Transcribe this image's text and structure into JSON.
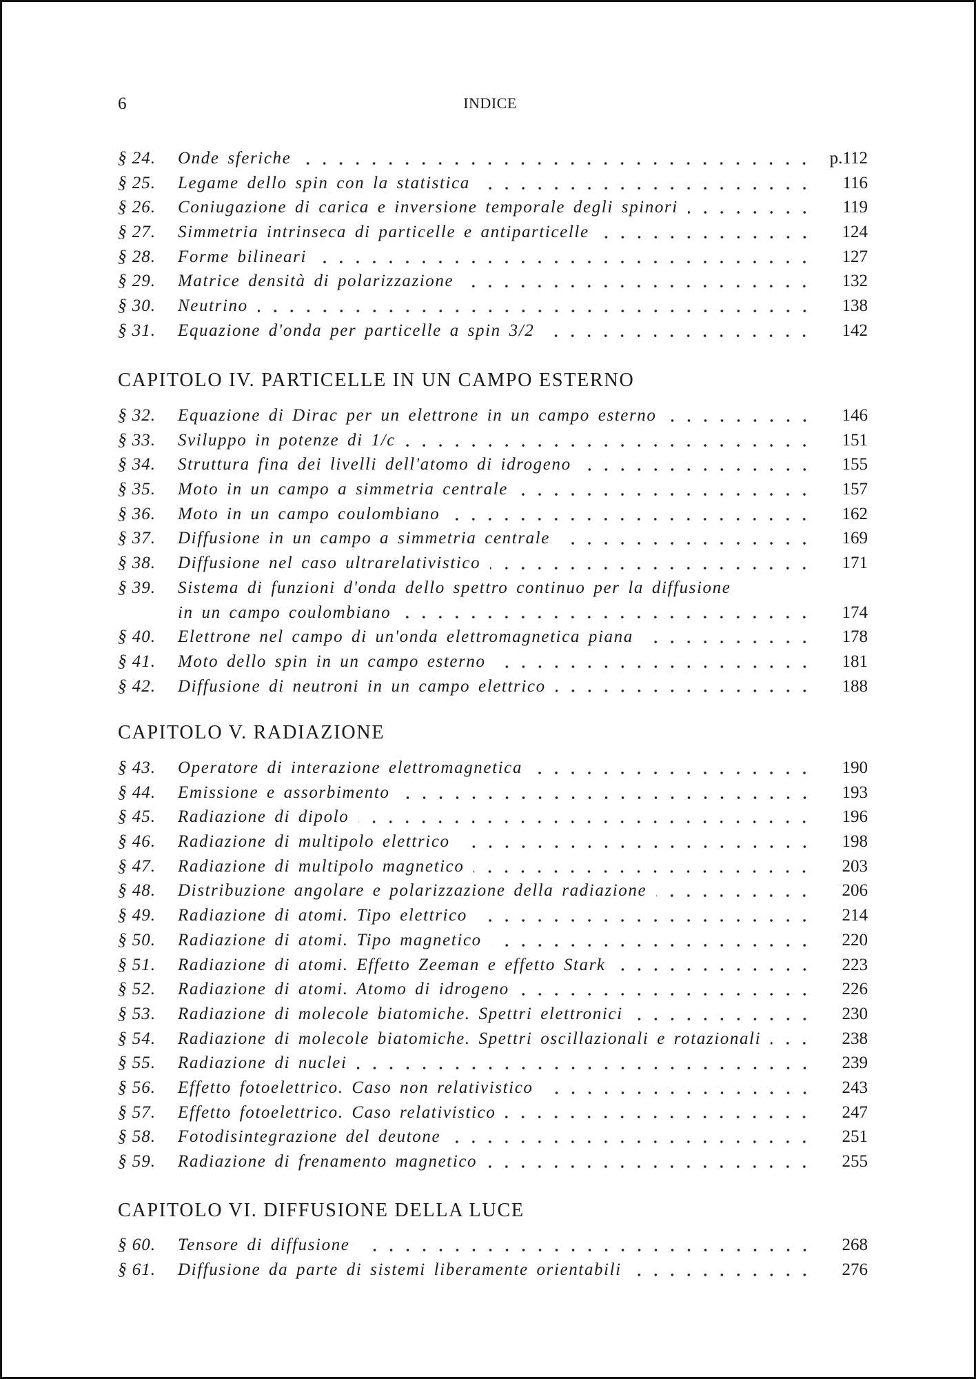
{
  "header": {
    "page_number": "6",
    "running_title": "INDICE"
  },
  "sections": [
    {
      "chapter": "",
      "entries": [
        {
          "num": "§ 24.",
          "title": "Onde sferiche",
          "page": "p.112"
        },
        {
          "num": "§ 25.",
          "title": "Legame dello spin con la statistica",
          "page": "116"
        },
        {
          "num": "§ 26.",
          "title": "Coniugazione di carica e inversione temporale degli spinori",
          "page": "119"
        },
        {
          "num": "§ 27.",
          "title": "Simmetria intrinseca di particelle e antiparticelle",
          "page": "124"
        },
        {
          "num": "§ 28.",
          "title": "Forme bilineari",
          "page": "127"
        },
        {
          "num": "§ 29.",
          "title": "Matrice densità di polarizzazione",
          "page": "132"
        },
        {
          "num": "§ 30.",
          "title": "Neutrino",
          "page": "138"
        },
        {
          "num": "§ 31.",
          "title": "Equazione d'onda per particelle a spin 3/2",
          "page": "142"
        }
      ]
    },
    {
      "chapter": "CAPITOLO IV. PARTICELLE IN UN CAMPO ESTERNO",
      "entries": [
        {
          "num": "§ 32.",
          "title": "Equazione di Dirac per un elettrone in un campo esterno",
          "page": "146"
        },
        {
          "num": "§ 33.",
          "title": "Sviluppo in potenze di 1/c",
          "page": "151"
        },
        {
          "num": "§ 34.",
          "title": "Struttura fina dei livelli dell'atomo di idrogeno",
          "page": "155"
        },
        {
          "num": "§ 35.",
          "title": "Moto in un campo a simmetria centrale",
          "page": "157"
        },
        {
          "num": "§ 36.",
          "title": "Moto in un campo coulombiano",
          "page": "162"
        },
        {
          "num": "§ 37.",
          "title": "Diffusione in un campo a simmetria centrale",
          "page": "169"
        },
        {
          "num": "§ 38.",
          "title": "Diffusione nel caso ultrarelativistico",
          "page": "171"
        },
        {
          "num": "§ 39.",
          "title": "Sistema di funzioni d'onda dello spettro continuo per la diffusione",
          "title_cont": "in un campo coulombiano",
          "page": "174"
        },
        {
          "num": "§ 40.",
          "title": "Elettrone nel campo di un'onda elettromagnetica piana",
          "page": "178"
        },
        {
          "num": "§ 41.",
          "title": "Moto dello spin in un campo esterno",
          "page": "181"
        },
        {
          "num": "§ 42.",
          "title": "Diffusione di neutroni in un campo elettrico",
          "page": "188"
        }
      ]
    },
    {
      "chapter": "CAPITOLO V. RADIAZIONE",
      "entries": [
        {
          "num": "§ 43.",
          "title": "Operatore di interazione elettromagnetica",
          "page": "190"
        },
        {
          "num": "§ 44.",
          "title": "Emissione e assorbimento",
          "page": "193"
        },
        {
          "num": "§ 45.",
          "title": "Radiazione di dipolo",
          "page": "196"
        },
        {
          "num": "§ 46.",
          "title": "Radiazione di multipolo elettrico",
          "page": "198"
        },
        {
          "num": "§ 47.",
          "title": "Radiazione di multipolo magnetico",
          "page": "203"
        },
        {
          "num": "§ 48.",
          "title": "Distribuzione angolare e polarizzazione della radiazione",
          "page": "206"
        },
        {
          "num": "§ 49.",
          "title": "Radiazione di atomi. Tipo elettrico",
          "page": "214"
        },
        {
          "num": "§ 50.",
          "title": "Radiazione di atomi. Tipo magnetico",
          "page": "220"
        },
        {
          "num": "§ 51.",
          "title": "Radiazione di atomi. Effetto Zeeman e effetto Stark",
          "page": "223"
        },
        {
          "num": "§ 52.",
          "title": "Radiazione di atomi. Atomo di idrogeno",
          "page": "226"
        },
        {
          "num": "§ 53.",
          "title": "Radiazione di molecole biatomiche. Spettri elettronici",
          "page": "230"
        },
        {
          "num": "§ 54.",
          "title": "Radiazione di molecole biatomiche. Spettri oscillazionali e rotazionali",
          "page": "238"
        },
        {
          "num": "§ 55.",
          "title": "Radiazione di nuclei",
          "page": "239"
        },
        {
          "num": "§ 56.",
          "title": "Effetto fotoelettrico. Caso non relativistico",
          "page": "243"
        },
        {
          "num": "§ 57.",
          "title": "Effetto fotoelettrico. Caso relativistico",
          "page": "247"
        },
        {
          "num": "§ 58.",
          "title": "Fotodisintegrazione del deutone",
          "page": "251"
        },
        {
          "num": "§ 59.",
          "title": "Radiazione di frenamento magnetico",
          "page": "255"
        }
      ]
    },
    {
      "chapter": "CAPITOLO VI. DIFFUSIONE DELLA LUCE",
      "entries": [
        {
          "num": "§ 60.",
          "title": "Tensore di diffusione",
          "page": "268"
        },
        {
          "num": "§ 61.",
          "title": "Diffusione da parte di sistemi liberamente orientabili",
          "page": "276"
        }
      ]
    }
  ]
}
